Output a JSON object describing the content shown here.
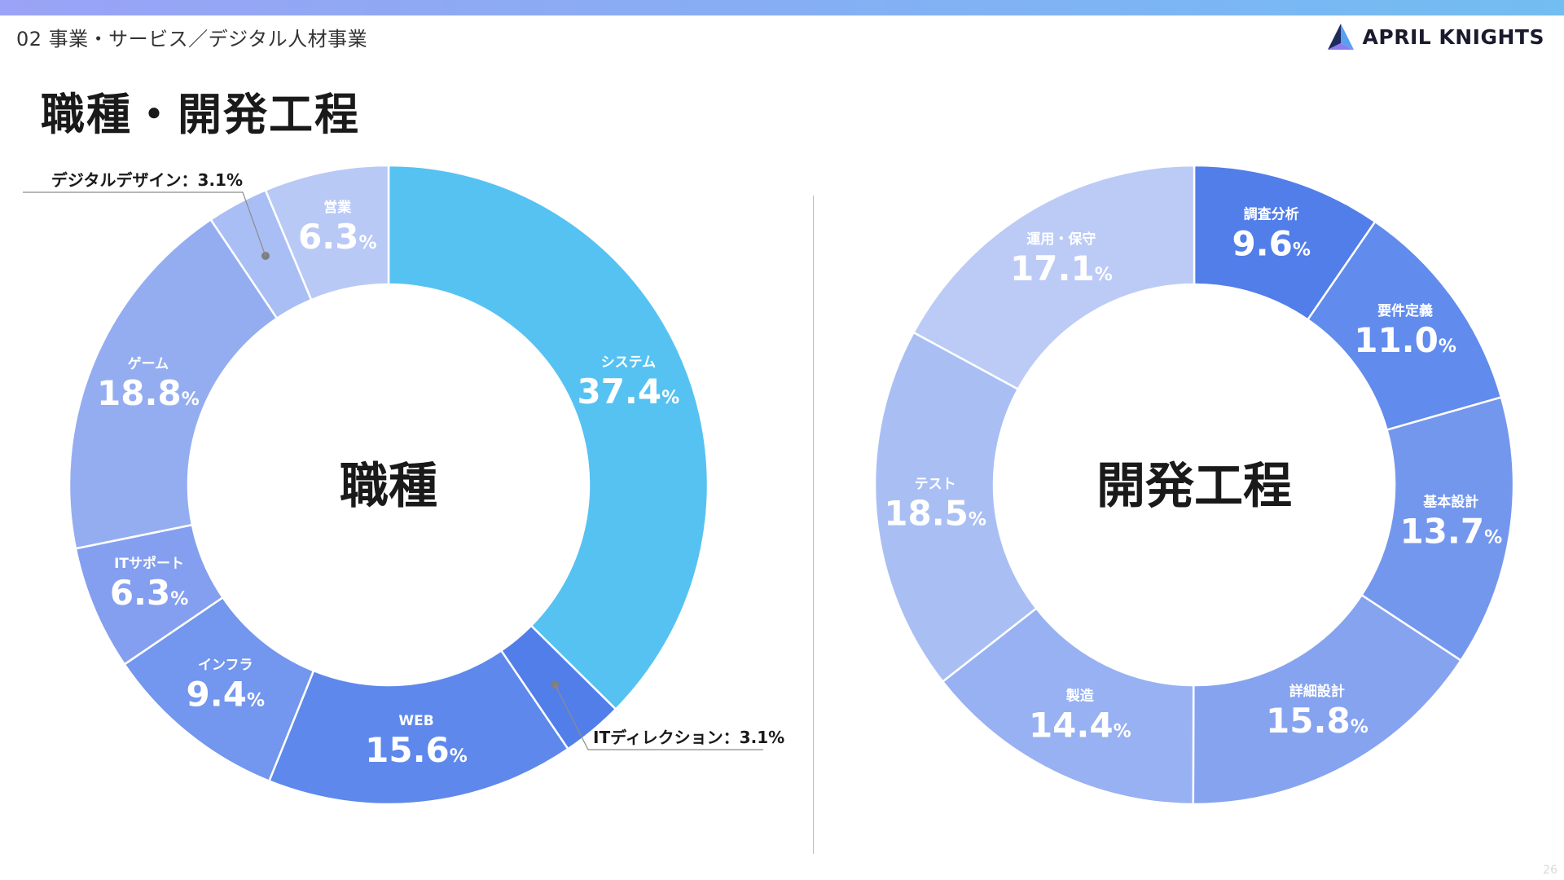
{
  "header": {
    "breadcrumb": "02 事業・サービス／デジタル人材事業",
    "brand": "APRIL KNIGHTS",
    "brand_icon": "triangle-logo-icon"
  },
  "page": {
    "title": "職種・開発工程",
    "page_number": "26"
  },
  "chart_data": [
    {
      "type": "pie",
      "center_label": "職種",
      "unit": "%",
      "slices": [
        {
          "label": "システム",
          "value": 37.4,
          "color": "#56c2f2"
        },
        {
          "label": "ITディレクション",
          "value": 3.1,
          "color": "#527ee9",
          "callout": "ITディレクション：3.1%"
        },
        {
          "label": "WEB",
          "value": 15.6,
          "color": "#5e88ec"
        },
        {
          "label": "インフラ",
          "value": 9.4,
          "color": "#7396ee"
        },
        {
          "label": "ITサポート",
          "value": 6.3,
          "color": "#849fef"
        },
        {
          "label": "ゲーム",
          "value": 18.8,
          "color": "#94adf1"
        },
        {
          "label": "デジタルデザイン",
          "value": 3.1,
          "color": "#a9bef4",
          "callout": "デジタルデザイン：3.1%"
        },
        {
          "label": "営業",
          "value": 6.3,
          "color": "#b9c9f6"
        }
      ]
    },
    {
      "type": "pie",
      "center_label": "開発工程",
      "unit": "%",
      "slices": [
        {
          "label": "調査分析",
          "value": 9.6,
          "color": "#527ee9"
        },
        {
          "label": "要件定義",
          "value": 11.0,
          "color": "#618bec"
        },
        {
          "label": "基本設計",
          "value": 13.7,
          "color": "#7497ee"
        },
        {
          "label": "詳細設計",
          "value": 15.8,
          "color": "#86a3f0"
        },
        {
          "label": "製造",
          "value": 14.4,
          "color": "#97b1f2"
        },
        {
          "label": "テスト",
          "value": 18.5,
          "color": "#a9bff4"
        },
        {
          "label": "運用・保守",
          "value": 17.1,
          "color": "#bccbf6"
        }
      ]
    }
  ]
}
